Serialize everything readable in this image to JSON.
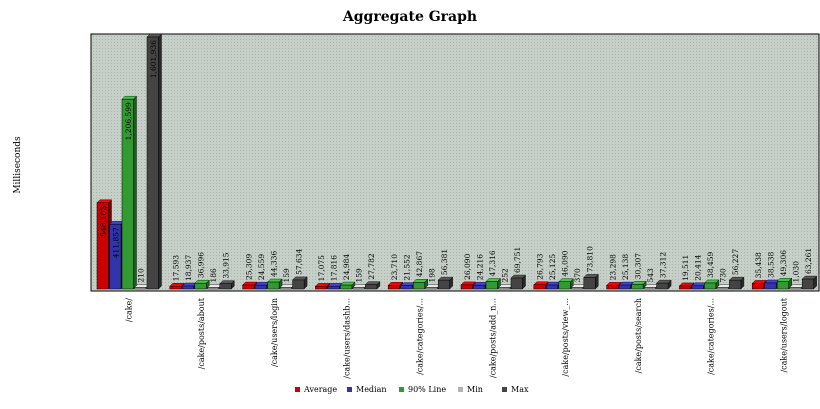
{
  "chart_data": {
    "type": "bar",
    "title": "Aggregate Graph",
    "ylabel": "Milliseconds",
    "xlabel": "",
    "ylim": [
      0,
      1601936
    ],
    "grid": true,
    "legend_position": "bottom",
    "categories": [
      "/cake/",
      "/cake/posts/about",
      "/cake/users/login",
      "/cake/users/dashb...",
      "/cake/categories/...",
      "/cake/posts/add_n...",
      "/cake/posts/view_...",
      "/cake/posts/search",
      "/cake/categories/...",
      "/cake/users/logout"
    ],
    "series": [
      {
        "name": "Average",
        "color": "#cc0000",
        "values": [
          548103,
          17593,
          25309,
          17075,
          23710,
          26090,
          26793,
          23298,
          19511,
          35438
        ]
      },
      {
        "name": "Median",
        "color": "#3333aa",
        "values": [
          411857,
          18937,
          24559,
          17816,
          21552,
          24216,
          25125,
          25138,
          20414,
          38538
        ]
      },
      {
        "name": "90% Line",
        "color": "#339933",
        "values": [
          1206599,
          36996,
          44336,
          24984,
          42867,
          47316,
          46090,
          30307,
          38459,
          49306
        ]
      },
      {
        "name": "Min",
        "color": "#b3b3b3",
        "values": [
          210,
          186,
          159,
          159,
          198,
          252,
          370,
          543,
          730,
          1030
        ]
      },
      {
        "name": "Max",
        "color": "#444444",
        "values": [
          1601936,
          33915,
          57634,
          27782,
          56381,
          69751,
          73810,
          37312,
          56227,
          63261
        ]
      }
    ],
    "data_labels": [
      [
        "548,103",
        "411,857",
        "1,206,599",
        "210",
        "1,601,936"
      ],
      [
        "17,593",
        "18,937",
        "36,996",
        "186",
        "33,915"
      ],
      [
        "25,309",
        "24,559",
        "44,336",
        "159",
        "57,634"
      ],
      [
        "17,075",
        "17,816",
        "24,984",
        "159",
        "27,782"
      ],
      [
        "23,710",
        "21,552",
        "42,867",
        "198",
        "56,381"
      ],
      [
        "26,090",
        "24,216",
        "47,316",
        "252",
        "69,751"
      ],
      [
        "26,793",
        "25,125",
        "46,090",
        "370",
        "73,810"
      ],
      [
        "23,298",
        "25,138",
        "30,307",
        "543",
        "37,312"
      ],
      [
        "19,511",
        "20,414",
        "38,459",
        "730",
        "56,227"
      ],
      [
        "35,438",
        "38,538",
        "49,306",
        "1,030",
        "63,261"
      ]
    ]
  }
}
